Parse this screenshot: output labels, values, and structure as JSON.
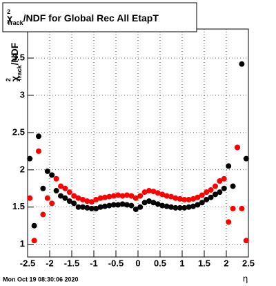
{
  "chart_data": {
    "type": "scatter",
    "title": {
      "symbol": "χ",
      "sup": "2",
      "sub": "Track",
      "text": "/NDF for Global Rec All EtapT"
    },
    "y_label": {
      "symbol": "χ",
      "sup": "2",
      "sub": "Track",
      "text": "/NDF"
    },
    "x_label": "η",
    "timestamp": "Mon Oct 19 08:30:06 2020",
    "xlim": [
      -2.5,
      2.5
    ],
    "ylim": [
      0.83,
      3.89
    ],
    "xticks": [
      -2.5,
      -2,
      -1.5,
      -1,
      -0.5,
      0,
      0.5,
      1,
      1.5,
      2,
      2.5
    ],
    "yticks": [
      1,
      1.5,
      2,
      2.5,
      3,
      3.5
    ],
    "grid": true,
    "x": [
      -2.45,
      -2.35,
      -2.25,
      -2.15,
      -2.05,
      -1.95,
      -1.85,
      -1.75,
      -1.65,
      -1.55,
      -1.45,
      -1.35,
      -1.25,
      -1.15,
      -1.05,
      -0.95,
      -0.85,
      -0.75,
      -0.65,
      -0.55,
      -0.45,
      -0.35,
      -0.25,
      -0.15,
      -0.05,
      0.05,
      0.15,
      0.25,
      0.35,
      0.45,
      0.55,
      0.65,
      0.75,
      0.85,
      0.95,
      1.05,
      1.15,
      1.25,
      1.35,
      1.45,
      1.55,
      1.65,
      1.75,
      1.85,
      1.95,
      2.05,
      2.15,
      2.25,
      2.35,
      2.45
    ],
    "series": [
      {
        "color": "#000000",
        "values": [
          2.15,
          1.25,
          2.45,
          1.75,
          1.98,
          1.93,
          1.72,
          1.65,
          1.62,
          1.58,
          1.55,
          1.5,
          1.5,
          1.49,
          1.48,
          1.48,
          1.5,
          1.51,
          1.52,
          1.53,
          1.53,
          1.54,
          1.53,
          1.52,
          1.47,
          1.5,
          1.56,
          1.58,
          1.56,
          1.54,
          1.52,
          1.51,
          1.5,
          1.49,
          1.49,
          1.49,
          1.5,
          1.51,
          1.53,
          1.56,
          1.6,
          1.63,
          1.67,
          1.7,
          1.75,
          2.05,
          1.78,
          2.3,
          3.42,
          2.15
        ]
      },
      {
        "color": "#ff0000",
        "values": [
          1.62,
          1.05,
          2.25,
          1.4,
          1.62,
          1.55,
          1.88,
          1.78,
          1.75,
          1.7,
          1.65,
          1.62,
          1.6,
          1.58,
          1.57,
          1.6,
          1.62,
          1.63,
          1.64,
          1.65,
          1.66,
          1.65,
          1.66,
          1.65,
          1.62,
          1.65,
          1.7,
          1.72,
          1.71,
          1.69,
          1.67,
          1.65,
          1.64,
          1.62,
          1.61,
          1.6,
          1.6,
          1.61,
          1.63,
          1.66,
          1.7,
          1.73,
          1.78,
          1.85,
          1.88,
          1.3,
          1.48,
          2.3,
          1.48,
          1.05
        ]
      }
    ]
  }
}
